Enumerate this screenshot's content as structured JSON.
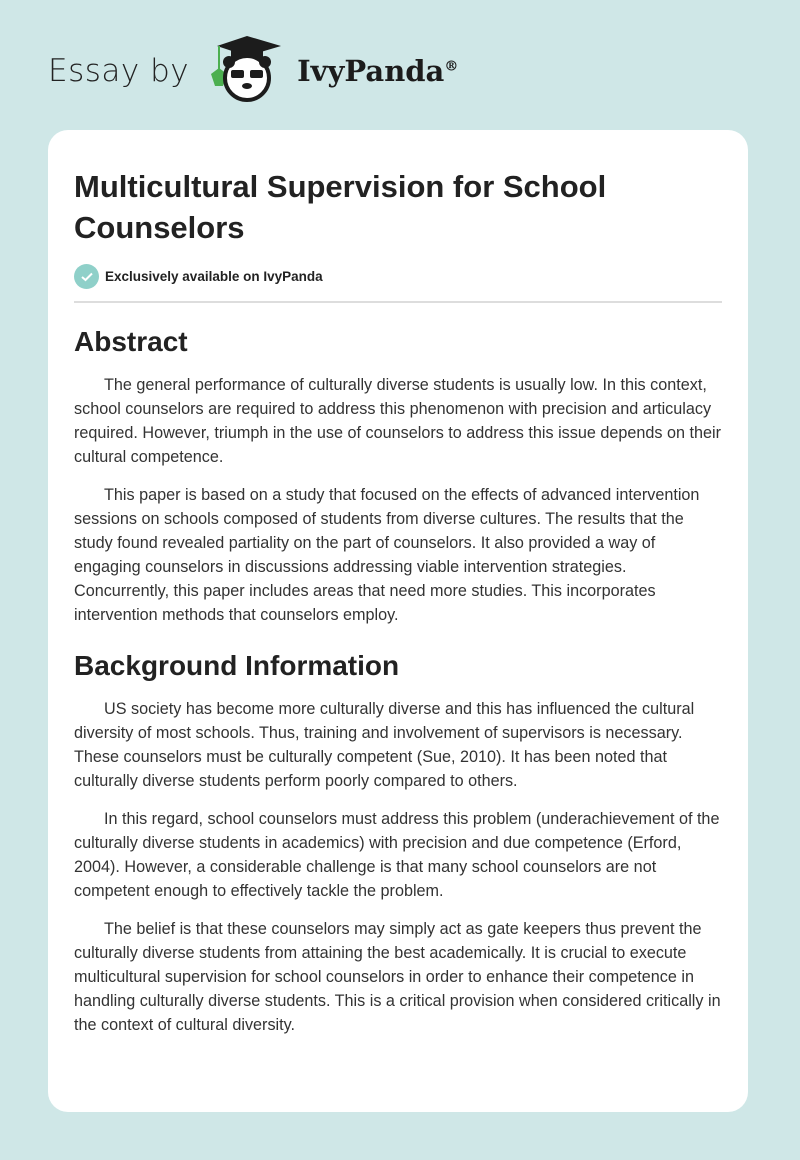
{
  "header": {
    "prefix": "Essay by",
    "brand": "IvyPanda",
    "registered": "®",
    "logo_icon": "panda-graduate-icon"
  },
  "colors": {
    "background": "#cfe7e7",
    "badge": "#8fd0c9"
  },
  "article": {
    "title": "Multicultural Supervision for School Counselors",
    "badge": "Exclusively available on IvyPanda",
    "sections": [
      {
        "heading": "Abstract",
        "paragraphs": [
          "The general performance of culturally diverse students is usually low. In this context, school counselors are required to address this phenomenon with precision and articulacy required. However, triumph in the use of counselors to address this issue depends on their cultural competence.",
          "This paper is based on a study that focused on the effects of advanced intervention sessions on schools composed of students from diverse cultures. The results that the study found revealed partiality on the part of counselors. It also provided a way of engaging counselors in discussions addressing viable intervention strategies. Concurrently, this paper includes areas that need more studies. This incorporates intervention methods that counselors employ."
        ]
      },
      {
        "heading": "Background Information",
        "paragraphs": [
          "US society has become more culturally diverse and this has influenced the cultural diversity of most schools. Thus, training and involvement of supervisors is necessary. These counselors must be culturally competent (Sue, 2010). It has been noted that culturally diverse students perform poorly compared to others.",
          "In this regard, school counselors must address this problem (underachievement of the culturally diverse students in academics) with precision and due competence (Erford, 2004). However, a considerable challenge is that many school counselors are not competent enough to effectively tackle the problem.",
          "The belief is that these counselors may simply act as gate keepers thus prevent the culturally diverse students from attaining the best academically. It is crucial to execute multicultural supervision for school counselors in order to enhance their competence in handling culturally diverse students. This is a critical provision when considered critically in the context of cultural diversity."
        ]
      }
    ]
  }
}
